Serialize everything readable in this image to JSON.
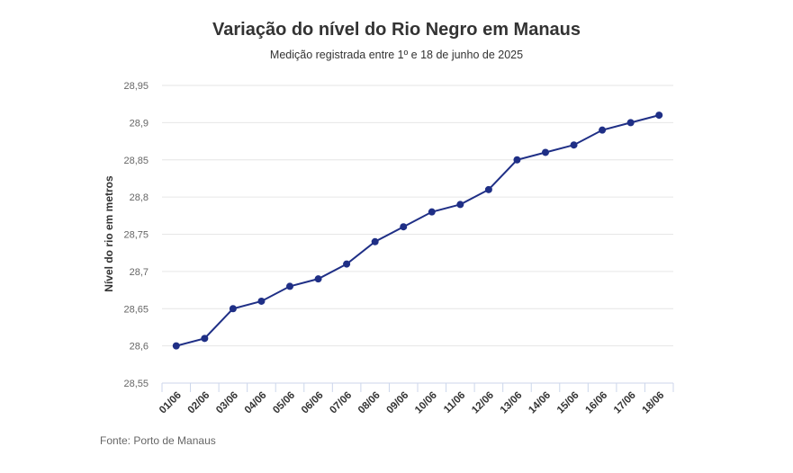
{
  "chart_data": {
    "type": "line",
    "title": "Variação do nível do Rio Negro em Manaus",
    "subtitle": "Medição registrada entre 1º e 18 de junho de 2025",
    "xlabel": "",
    "ylabel": "Nível do rio em metros",
    "source": "Fonte: Porto de Manaus",
    "categories": [
      "01/06",
      "02/06",
      "03/06",
      "04/06",
      "05/06",
      "06/06",
      "07/06",
      "08/06",
      "09/06",
      "10/06",
      "11/06",
      "12/06",
      "13/06",
      "14/06",
      "15/06",
      "16/06",
      "17/06",
      "18/06"
    ],
    "series": [
      {
        "name": "Nível do rio em metros",
        "color": "#1f2f86",
        "values": [
          28.6,
          28.61,
          28.65,
          28.66,
          28.68,
          28.69,
          28.71,
          28.74,
          28.76,
          28.78,
          28.79,
          28.81,
          28.85,
          28.86,
          28.87,
          28.89,
          28.9,
          28.91
        ]
      }
    ],
    "ylim": [
      28.55,
      28.95
    ],
    "yticks": [
      28.55,
      28.6,
      28.65,
      28.7,
      28.75,
      28.8,
      28.85,
      28.9,
      28.95
    ],
    "ytick_labels": [
      "28,55",
      "28,6",
      "28,65",
      "28,7",
      "28,75",
      "28,8",
      "28,85",
      "28,9",
      "28,95"
    ],
    "grid": true,
    "legend": "none"
  }
}
